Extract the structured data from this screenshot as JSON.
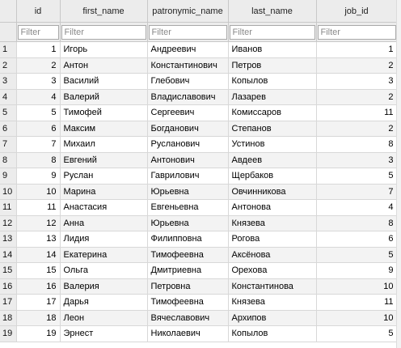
{
  "columns": {
    "id": "id",
    "first_name": "first_name",
    "patronymic_name": "patronymic_name",
    "last_name": "last_name",
    "job_id": "job_id"
  },
  "filter_placeholder": "Filter",
  "rows": [
    {
      "n": "1",
      "id": "1",
      "first_name": "Игорь",
      "patronymic_name": "Андреевич",
      "last_name": "Иванов",
      "job_id": "1"
    },
    {
      "n": "2",
      "id": "2",
      "first_name": "Антон",
      "patronymic_name": "Константинович",
      "last_name": "Петров",
      "job_id": "2"
    },
    {
      "n": "3",
      "id": "3",
      "first_name": "Василий",
      "patronymic_name": "Глебович",
      "last_name": "Копылов",
      "job_id": "3"
    },
    {
      "n": "4",
      "id": "4",
      "first_name": "Валерий",
      "patronymic_name": "Владиславович",
      "last_name": "Лазарев",
      "job_id": "2"
    },
    {
      "n": "5",
      "id": "5",
      "first_name": "Тимофей",
      "patronymic_name": "Сергеевич",
      "last_name": "Комиссаров",
      "job_id": "11"
    },
    {
      "n": "6",
      "id": "6",
      "first_name": "Максим",
      "patronymic_name": "Богданович",
      "last_name": "Степанов",
      "job_id": "2"
    },
    {
      "n": "7",
      "id": "7",
      "first_name": "Михаил",
      "patronymic_name": "Русланович",
      "last_name": "Устинов",
      "job_id": "8"
    },
    {
      "n": "8",
      "id": "8",
      "first_name": "Евгений",
      "patronymic_name": "Антонович",
      "last_name": "Авдеев",
      "job_id": "3"
    },
    {
      "n": "9",
      "id": "9",
      "first_name": "Руслан",
      "patronymic_name": "Гаврилович",
      "last_name": "Щербаков",
      "job_id": "5"
    },
    {
      "n": "10",
      "id": "10",
      "first_name": "Марина",
      "patronymic_name": "Юрьевна",
      "last_name": "Овчинникова",
      "job_id": "7"
    },
    {
      "n": "11",
      "id": "11",
      "first_name": "Анастасия",
      "patronymic_name": "Евгеньевна",
      "last_name": "Антонова",
      "job_id": "4"
    },
    {
      "n": "12",
      "id": "12",
      "first_name": "Анна",
      "patronymic_name": "Юрьевна",
      "last_name": "Князева",
      "job_id": "8"
    },
    {
      "n": "13",
      "id": "13",
      "first_name": "Лидия",
      "patronymic_name": "Филипповна",
      "last_name": "Рогова",
      "job_id": "6"
    },
    {
      "n": "14",
      "id": "14",
      "first_name": "Екатерина",
      "patronymic_name": "Тимофеевна",
      "last_name": "Аксёнова",
      "job_id": "5"
    },
    {
      "n": "15",
      "id": "15",
      "first_name": "Ольга",
      "patronymic_name": "Дмитриевна",
      "last_name": "Орехова",
      "job_id": "9"
    },
    {
      "n": "16",
      "id": "16",
      "first_name": "Валерия",
      "patronymic_name": "Петровна",
      "last_name": "Константинова",
      "job_id": "10"
    },
    {
      "n": "17",
      "id": "17",
      "first_name": "Дарья",
      "patronymic_name": "Тимофеевна",
      "last_name": "Князева",
      "job_id": "11"
    },
    {
      "n": "18",
      "id": "18",
      "first_name": "Леон",
      "patronymic_name": "Вячеславович",
      "last_name": "Архипов",
      "job_id": "10"
    },
    {
      "n": "19",
      "id": "19",
      "first_name": "Эрнест",
      "patronymic_name": "Николаевич",
      "last_name": "Копылов",
      "job_id": "5"
    }
  ]
}
